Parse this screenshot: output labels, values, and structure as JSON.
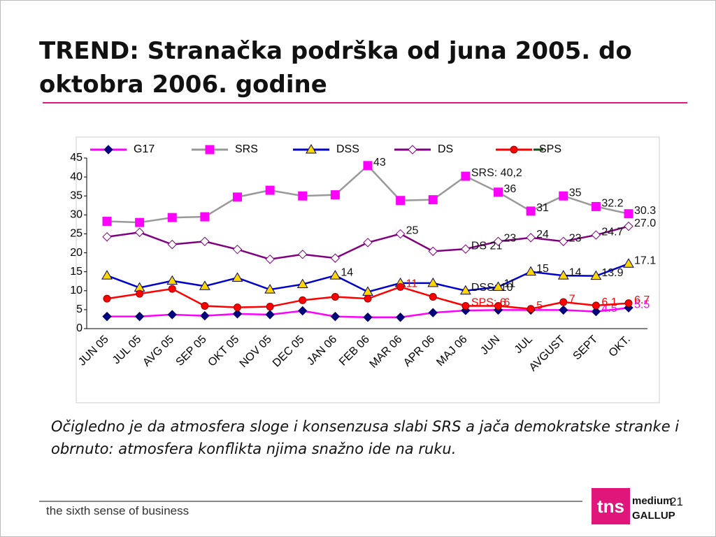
{
  "header": {
    "title": "TREND: Stranačka podrška od juna 2005. do oktobra 2006. godine"
  },
  "chart_data": {
    "type": "line",
    "categories": [
      "JUN 05",
      "JUL 05",
      "AVG 05",
      "SEP 05",
      "OKT 05",
      "NOV 05",
      "DEC 05",
      "JAN 06",
      "FEB 06",
      "MAR 06",
      "APR 06",
      "MAJ 06",
      "JUN",
      "JUL",
      "AVGUST",
      "SEPT",
      "OKT."
    ],
    "ylim": [
      0,
      45
    ],
    "yticks": [
      0,
      5,
      10,
      15,
      20,
      25,
      30,
      35,
      40,
      45
    ],
    "series": [
      {
        "name": "G17",
        "color": "#ff00ff",
        "marker": "diamond",
        "marker_color": "#000080",
        "label_color": "#ff00ff",
        "values": [
          3.2,
          3.2,
          3.7,
          3.4,
          3.9,
          3.7,
          4.7,
          3.2,
          3.0,
          3.0,
          4.2,
          4.8,
          4.9,
          4.9,
          4.9,
          4.5,
          5.5
        ],
        "value_labels": [
          null,
          null,
          null,
          null,
          null,
          null,
          null,
          null,
          null,
          null,
          null,
          null,
          null,
          null,
          null,
          "4.5",
          "5.5"
        ]
      },
      {
        "name": "SRS",
        "color": "#999999",
        "marker": "square",
        "marker_color": "#ff00ff",
        "label_color": "#111111",
        "values": [
          28.3,
          28.0,
          29.3,
          29.5,
          34.7,
          36.5,
          35.0,
          35.3,
          43,
          33.8,
          34.0,
          40.2,
          36,
          31,
          35,
          32.2,
          30.3
        ],
        "value_labels": [
          null,
          null,
          null,
          null,
          null,
          null,
          null,
          null,
          "43",
          null,
          null,
          "SRS: 40,2",
          "36",
          "31",
          "35",
          "32.2",
          "30.3"
        ]
      },
      {
        "name": "DSS",
        "color": "#0000cc",
        "marker": "triangle",
        "marker_color": "#ffd700",
        "label_color": "#111111",
        "values": [
          14,
          10.8,
          12.6,
          11.2,
          13.4,
          10.3,
          11.7,
          14,
          9.7,
          12,
          12,
          10,
          11,
          15,
          14,
          13.9,
          17.1
        ],
        "value_labels": [
          null,
          null,
          null,
          null,
          null,
          null,
          null,
          "14",
          null,
          null,
          null,
          "DSS: 10",
          "11",
          "15",
          "14",
          "13.9",
          "17.1"
        ]
      },
      {
        "name": "DS",
        "color": "#800080",
        "marker": "open-diamond",
        "marker_color": "#ffffff",
        "label_color": "#111111",
        "values": [
          24.2,
          25.4,
          22.2,
          23.0,
          20.9,
          18.3,
          19.6,
          18.6,
          22.7,
          25,
          20.4,
          21,
          23,
          24,
          23,
          24.7,
          27.0
        ],
        "value_labels": [
          null,
          null,
          null,
          null,
          null,
          null,
          null,
          null,
          null,
          "25",
          null,
          "DS 21",
          "23",
          "24",
          "23",
          "24.7",
          "27.0"
        ]
      },
      {
        "name": "SPS",
        "color": "#ff0000",
        "marker": "circle",
        "marker_color": "#ff0000",
        "label_color": "#ff0000",
        "values": [
          7.9,
          9.2,
          10.5,
          6.0,
          5.6,
          5.8,
          7.5,
          8.4,
          7.9,
          11,
          8.4,
          6,
          6,
          5.2,
          7,
          6.1,
          6.7
        ],
        "value_labels": [
          null,
          null,
          null,
          null,
          null,
          null,
          null,
          null,
          null,
          "11",
          null,
          "SPS: 6",
          "6",
          "5",
          "7",
          "6.1",
          "6.7"
        ]
      }
    ]
  },
  "note": "Očigledno je da atmosfera sloge i konsenzusa slabi SRS a jača demokratske stranke i obrnuto: atmosfera konflikta njima snažno ide na ruku.",
  "footer": {
    "tagline": "the sixth sense of business",
    "logo": "tns",
    "brand_top": "medium",
    "brand_bottom": "GALLUP",
    "page": "21"
  }
}
